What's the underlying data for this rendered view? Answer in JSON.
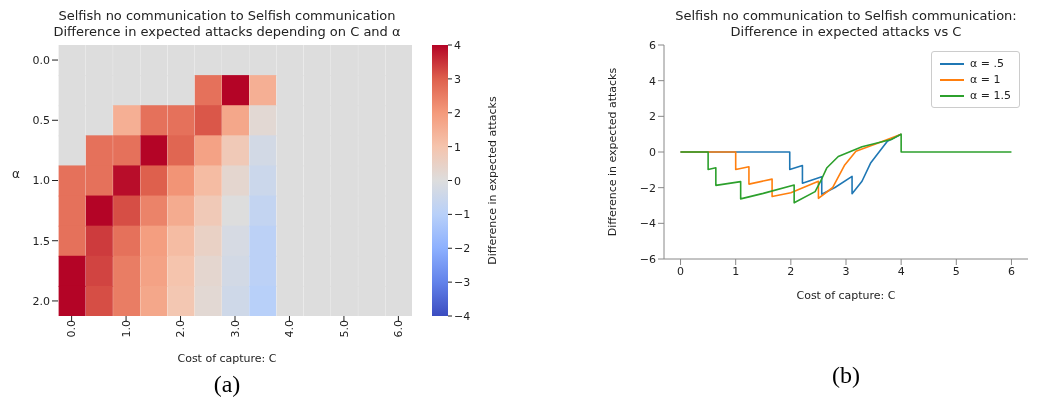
{
  "chart_data": [
    {
      "type": "heatmap",
      "title": "Selfish no communication to Selfish communication",
      "subtitle": "Difference in expected attacks depending on C and α",
      "xlabel": "Cost of capture: C",
      "ylabel": "α",
      "clabel": "Difference in expected attacks",
      "categories": [
        "0.0",
        null,
        "1.0",
        null,
        "2.0",
        null,
        "3.0",
        null,
        "4.0",
        null,
        "5.0",
        null,
        "6.0"
      ],
      "y_categories": [
        "0.0",
        null,
        "0.5",
        null,
        "1.0",
        null,
        "1.5",
        null,
        "2.0"
      ],
      "cells": [
        [
          0,
          0,
          0,
          0,
          0,
          0,
          0,
          0,
          0,
          0,
          0,
          0,
          0
        ],
        [
          0,
          0,
          0,
          0,
          0,
          2.7,
          4.0,
          1.5,
          0,
          0,
          0,
          0,
          0
        ],
        [
          0,
          0,
          1.5,
          2.7,
          2.7,
          3.1,
          1.7,
          0.2,
          0,
          0,
          0,
          0,
          0
        ],
        [
          0,
          2.7,
          2.7,
          4.0,
          2.9,
          1.8,
          0.8,
          -0.3,
          0,
          0,
          0,
          0,
          0
        ],
        [
          2.7,
          2.7,
          3.9,
          3.0,
          2.1,
          1.2,
          0.3,
          -0.5,
          0,
          0,
          0,
          0,
          0
        ],
        [
          2.7,
          4.0,
          3.2,
          2.4,
          1.6,
          0.8,
          0,
          -0.7,
          0,
          0,
          0,
          0,
          0
        ],
        [
          2.7,
          3.4,
          2.7,
          1.9,
          1.2,
          0.5,
          -0.2,
          -0.9,
          0,
          0,
          0,
          0,
          0
        ],
        [
          4.0,
          3.3,
          2.5,
          1.8,
          1.0,
          0.3,
          -0.3,
          -0.9,
          0,
          0,
          0,
          0,
          0
        ],
        [
          4.0,
          3.2,
          2.5,
          1.7,
          0.9,
          0.2,
          -0.4,
          -1.0,
          0,
          0,
          0,
          0,
          0
        ]
      ],
      "clim": [
        -4,
        4
      ],
      "cticks": [
        -4,
        -3,
        -2,
        -1,
        0,
        1,
        2,
        3,
        4
      ],
      "annotations": [
        "(a)"
      ]
    },
    {
      "type": "line",
      "title": "Selfish no communication to Selfish communication:",
      "subtitle": "Difference in expected attacks vs C",
      "xlabel": "Cost of capture: C",
      "ylabel": "Difference in expected attacks",
      "xlim": [
        -0.3,
        6.3
      ],
      "xticks": [
        0,
        1,
        2,
        3,
        4,
        5,
        6
      ],
      "ylim": [
        -6,
        6
      ],
      "yticks": [
        -6,
        -4,
        -2,
        0,
        2,
        4,
        6
      ],
      "legend": "top right",
      "marker": "none",
      "line_style": "solid",
      "series": [
        {
          "name": "α = .5",
          "color": "#1f77b4",
          "x": [
            0,
            1.98,
            1.98,
            2.21,
            2.21,
            2.56,
            2.56,
            2.8,
            3.11,
            3.11,
            3.29,
            3.45,
            3.61,
            3.75,
            4
          ],
          "values": [
            0,
            0,
            -0.98,
            -0.76,
            -1.75,
            -1.39,
            -2.37,
            -1.99,
            -1.37,
            -2.34,
            -1.64,
            -0.6,
            0.04,
            0.6,
            1.0
          ]
        },
        {
          "name": "α = 1",
          "color": "#ff7f0e",
          "x": [
            0,
            1,
            1,
            1.24,
            1.24,
            1.66,
            1.66,
            2.0,
            2.5,
            2.5,
            2.76,
            2.97,
            3.18,
            3.56,
            4
          ],
          "values": [
            0,
            0,
            -0.98,
            -0.83,
            -1.8,
            -1.52,
            -2.5,
            -2.29,
            -1.64,
            -2.6,
            -1.99,
            -0.76,
            0.04,
            0.48,
            1.0
          ]
        },
        {
          "name": "α = 1.5",
          "color": "#2ca02c",
          "x": [
            0,
            0.5,
            0.5,
            0.64,
            0.64,
            1.09,
            1.09,
            1.5,
            2.06,
            2.06,
            2.44,
            2.54,
            2.65,
            2.86,
            3.29,
            3.82,
            4,
            4,
            6
          ],
          "values": [
            0,
            0,
            -0.98,
            -0.88,
            -1.87,
            -1.66,
            -2.63,
            -2.32,
            -1.85,
            -2.85,
            -2.22,
            -1.64,
            -0.9,
            -0.25,
            0.29,
            0.7,
            1.0,
            0,
            0
          ]
        }
      ],
      "annotations": [
        "(b)"
      ]
    }
  ]
}
